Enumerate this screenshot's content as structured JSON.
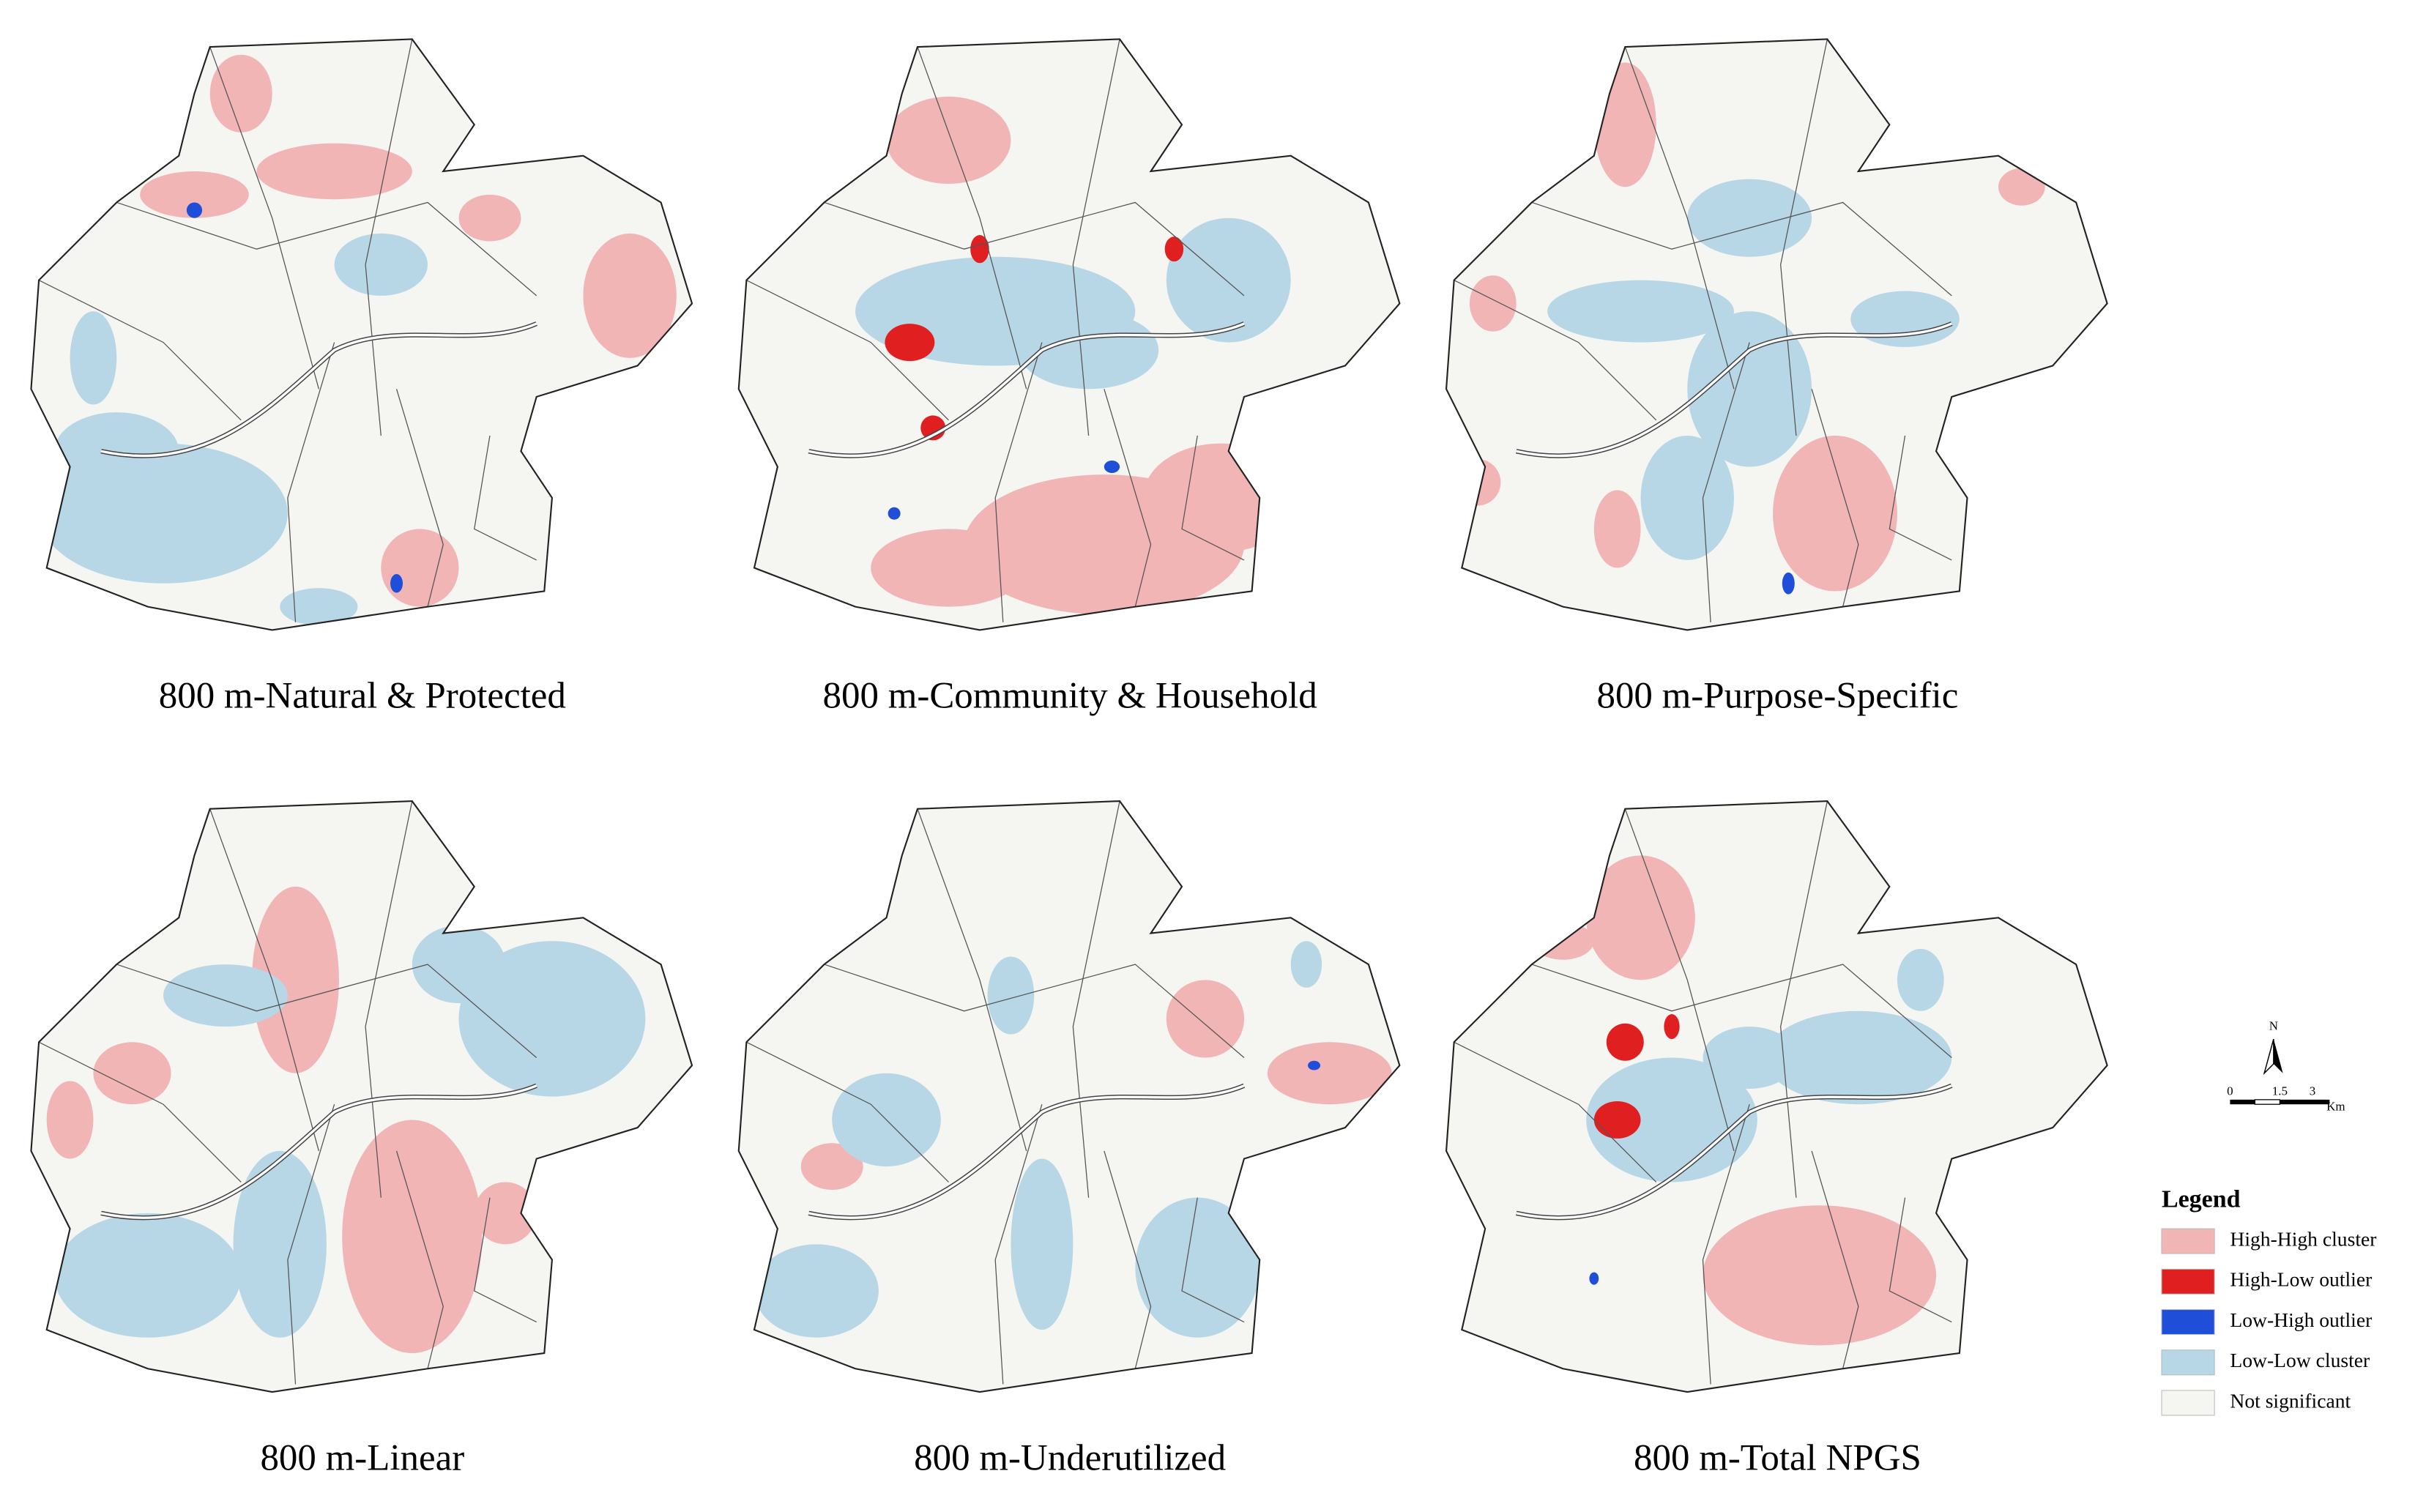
{
  "panels": [
    {
      "title": "800 m-Natural & Protected"
    },
    {
      "title": "800 m-Community & Household"
    },
    {
      "title": "800 m-Purpose-Specific"
    },
    {
      "title": "800 m-Linear"
    },
    {
      "title": "800 m-Underutilized"
    },
    {
      "title": "800 m-Total NPGS"
    }
  ],
  "north_arrow": {
    "label": "N"
  },
  "scale_bar": {
    "ticks": [
      "0",
      "1.5",
      "3"
    ],
    "unit": "Km"
  },
  "legend": {
    "title": "Legend",
    "items": [
      {
        "label": "High-High cluster",
        "color": "#f2b5b5"
      },
      {
        "label": "High-Low outlier",
        "color": "#e02020"
      },
      {
        "label": "Low-High outlier",
        "color": "#1f4fd8"
      },
      {
        "label": "Low-Low cluster",
        "color": "#b8d7e6"
      },
      {
        "label": "Not significant",
        "color": "#f5f5f2"
      }
    ]
  }
}
